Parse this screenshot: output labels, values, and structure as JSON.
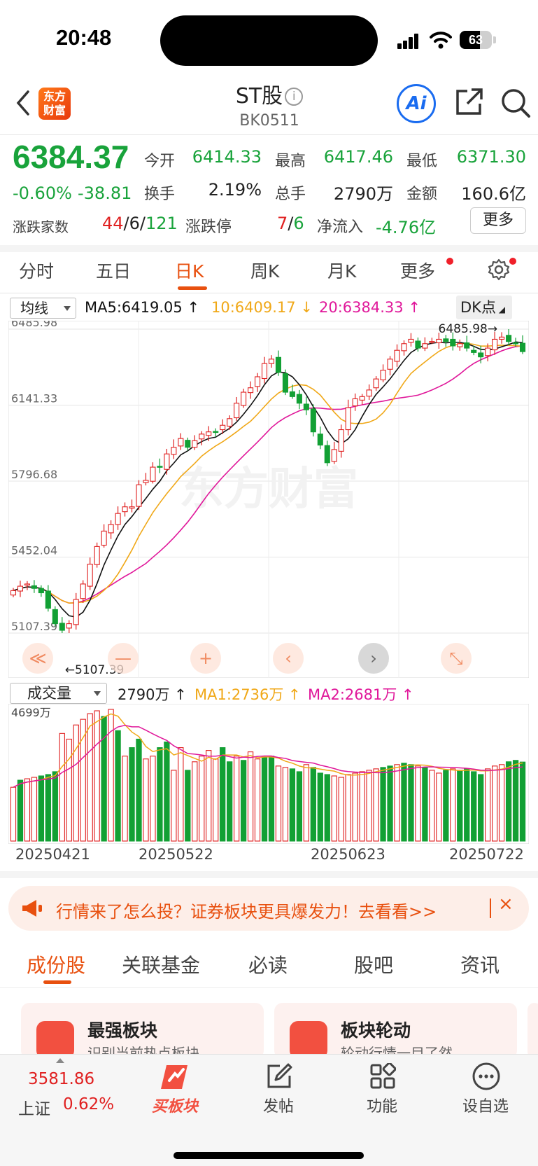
{
  "status": {
    "time": "20:48",
    "battery": "63",
    "battery_level": 0.63
  },
  "header": {
    "logo_line1": "东方",
    "logo_line2": "财富",
    "title": "ST股",
    "code": "BK0511",
    "ai_label": "Ai"
  },
  "quote": {
    "price": "6384.37",
    "change_pct": "-0.60%",
    "change": "-38.81",
    "open_label": "今开",
    "open": "6414.33",
    "high_label": "最高",
    "high": "6417.46",
    "low_label": "最低",
    "low": "6371.30",
    "turnover_label": "换手",
    "turnover": "2.19%",
    "volume_label": "总手",
    "volume": "2790万",
    "amount_label": "金额",
    "amount": "160.6亿",
    "breadth_label": "涨跌家数",
    "up": "44",
    "flat": "6",
    "down": "121",
    "limit_label": "涨跌停",
    "limit_up": "7",
    "limit_down": "6",
    "netflow_label": "净流入",
    "netflow": "-4.76亿",
    "more_label": "更多"
  },
  "period_tabs": [
    "分时",
    "五日",
    "日K",
    "周K",
    "月K",
    "更多"
  ],
  "ma": {
    "selector": "均线",
    "ma5": "MA5:6419.05",
    "ma10": "10:6409.17",
    "ma20": "20:6384.33",
    "dk": "DK点"
  },
  "chart_data": {
    "type": "candlestick",
    "y_ticks": [
      "6485.98",
      "6141.33",
      "5796.68",
      "5452.04",
      "5107.39"
    ],
    "ylim": [
      5107.39,
      6485.98
    ],
    "max_label": "6485.98",
    "min_label": "5107.39",
    "watermark": "东方财富",
    "series": [
      {
        "name": "MA5",
        "color": "#111111",
        "value": "6419.05"
      },
      {
        "name": "MA10",
        "color": "#f0a818",
        "value": "6409.17"
      },
      {
        "name": "MA20",
        "color": "#e0179a",
        "value": "6384.33"
      }
    ],
    "closes": [
      5300,
      5320,
      5330,
      5310,
      5290,
      5220,
      5150,
      5120,
      5150,
      5260,
      5330,
      5420,
      5500,
      5570,
      5600,
      5650,
      5680,
      5680,
      5780,
      5800,
      5860,
      5860,
      5920,
      5950,
      5990,
      5950,
      5980,
      6010,
      6020,
      6020,
      6050,
      6080,
      6150,
      6200,
      6220,
      6270,
      6330,
      6350,
      6290,
      6200,
      6180,
      6150,
      6120,
      6020,
      5960,
      5880,
      5940,
      6030,
      6130,
      6170,
      6180,
      6210,
      6260,
      6300,
      6350,
      6390,
      6420,
      6440,
      6400,
      6420,
      6430,
      6440,
      6430,
      6410,
      6420,
      6400,
      6380,
      6360,
      6400,
      6440,
      6450,
      6430,
      6420,
      6384
    ],
    "volume": {
      "selector": "成交量",
      "current": "2790万",
      "ma1": "MA1:2736万",
      "ma2": "MA2:2681万",
      "max_label": "4699万",
      "values": [
        1900,
        2150,
        2200,
        2250,
        2300,
        2350,
        2450,
        3800,
        3600,
        4100,
        4300,
        4500,
        4600,
        4400,
        4650,
        3900,
        3000,
        3300,
        3600,
        2900,
        3000,
        3300,
        3500,
        2500,
        3300,
        2500,
        2800,
        3000,
        3200,
        2900,
        3300,
        2800,
        3000,
        2850,
        3150,
        2900,
        2950,
        3000,
        2650,
        2600,
        2550,
        2450,
        2700,
        2600,
        2400,
        2350,
        2300,
        2250,
        2350,
        2400,
        2450,
        2500,
        2550,
        2600,
        2650,
        2700,
        2750,
        2700,
        2650,
        2600,
        2500,
        2400,
        2500,
        2550,
        2500,
        2550,
        2450,
        2350,
        2550,
        2650,
        2700,
        2800,
        2850,
        2790
      ],
      "dir": [
        1,
        0,
        1,
        1,
        0,
        0,
        0,
        1,
        1,
        1,
        1,
        1,
        1,
        0,
        1,
        0,
        1,
        0,
        0,
        1,
        1,
        0,
        0,
        1,
        1,
        0,
        1,
        1,
        1,
        1,
        0,
        0,
        1,
        0,
        1,
        1,
        0,
        0,
        1,
        1,
        0,
        0,
        1,
        0,
        0,
        0,
        1,
        1,
        1,
        1,
        1,
        1,
        1,
        0,
        0,
        1,
        0,
        0,
        1,
        0,
        1,
        1,
        0,
        1,
        0,
        0,
        0,
        0,
        1,
        1,
        1,
        0,
        0,
        0
      ]
    },
    "dates": [
      "20250421",
      "20250522",
      "20250623",
      "20250722"
    ]
  },
  "banner": {
    "text": "行情来了怎么投？证券板块更具爆发力！去看看>>",
    "close": "×"
  },
  "bottom_tabs": [
    "成份股",
    "关联基金",
    "必读",
    "股吧",
    "资讯"
  ],
  "cards": [
    {
      "title": "最强板块",
      "sub": "识别当前热点板块"
    },
    {
      "title": "板块轮动",
      "sub": "轮动行情一目了然"
    }
  ],
  "nav": {
    "index_value": "3581.86",
    "index_name": "上证",
    "index_pct": "0.62%",
    "buy_label": "买板块",
    "post_label": "发帖",
    "func_label": "功能",
    "fav_label": "设自选"
  }
}
